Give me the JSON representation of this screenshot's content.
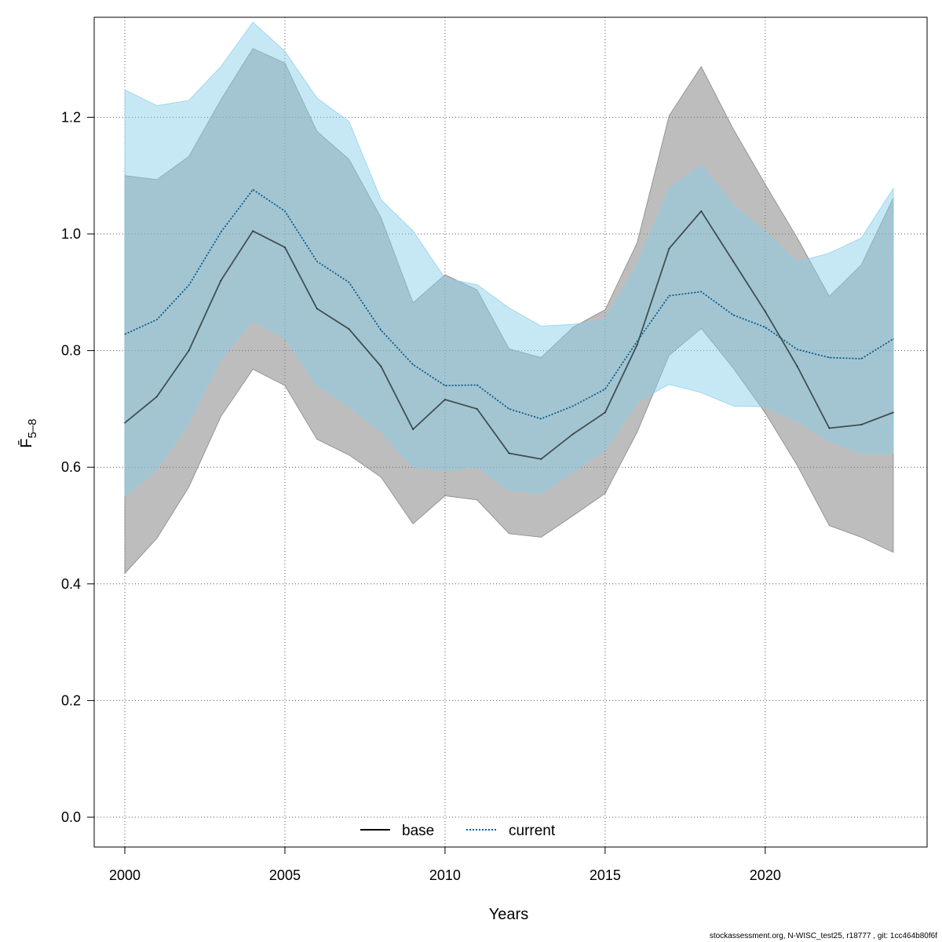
{
  "chart_data": {
    "type": "line",
    "xlabel": "Years",
    "ylabel": "F̄",
    "ylabel_sub": "5–8",
    "xlim": [
      2000,
      2024
    ],
    "ylim": [
      0.0,
      1.35
    ],
    "xticks": [
      "2000",
      "2005",
      "2010",
      "2015",
      "2020"
    ],
    "yticks": [
      "0.0",
      "0.2",
      "0.4",
      "0.6",
      "0.8",
      "1.0",
      "1.2"
    ],
    "grid": true,
    "legend_position": "bottom-center",
    "x": [
      2000,
      2001,
      2002,
      2003,
      2004,
      2005,
      2006,
      2007,
      2008,
      2009,
      2010,
      2011,
      2012,
      2013,
      2014,
      2015,
      2016,
      2017,
      2018,
      2019,
      2020,
      2021,
      2022,
      2023,
      2024
    ],
    "series": [
      {
        "name": "base",
        "line_style": "solid",
        "color": "#000000",
        "band_color": "#808080",
        "values": [
          0.676,
          0.721,
          0.8,
          0.92,
          1.005,
          0.977,
          0.872,
          0.837,
          0.773,
          0.665,
          0.716,
          0.7,
          0.624,
          0.614,
          0.657,
          0.694,
          0.81,
          0.975,
          1.039,
          0.953,
          0.867,
          0.773,
          0.667,
          0.673,
          0.694
        ],
        "lower": [
          0.418,
          0.478,
          0.566,
          0.687,
          0.768,
          0.74,
          0.648,
          0.621,
          0.583,
          0.503,
          0.551,
          0.544,
          0.486,
          0.48,
          0.517,
          0.555,
          0.66,
          0.792,
          0.838,
          0.77,
          0.693,
          0.603,
          0.5,
          0.48,
          0.454
        ],
        "upper": [
          1.1,
          1.093,
          1.133,
          1.23,
          1.318,
          1.293,
          1.176,
          1.128,
          1.028,
          0.882,
          0.93,
          0.904,
          0.803,
          0.788,
          0.84,
          0.87,
          0.985,
          1.203,
          1.287,
          1.18,
          1.085,
          0.993,
          0.893,
          0.947,
          1.062
        ]
      },
      {
        "name": "current",
        "line_style": "dotted",
        "color": "#0b5d8c",
        "band_color": "#87ceeb",
        "values": [
          0.828,
          0.853,
          0.912,
          1.003,
          1.076,
          1.039,
          0.953,
          0.917,
          0.835,
          0.776,
          0.74,
          0.741,
          0.7,
          0.683,
          0.705,
          0.734,
          0.816,
          0.894,
          0.901,
          0.861,
          0.84,
          0.802,
          0.788,
          0.786,
          0.82
        ],
        "lower": [
          0.551,
          0.597,
          0.677,
          0.786,
          0.852,
          0.821,
          0.741,
          0.705,
          0.661,
          0.601,
          0.595,
          0.601,
          0.561,
          0.555,
          0.593,
          0.631,
          0.712,
          0.742,
          0.728,
          0.705,
          0.704,
          0.679,
          0.645,
          0.624,
          0.624
        ],
        "upper": [
          1.247,
          1.22,
          1.229,
          1.287,
          1.363,
          1.313,
          1.233,
          1.193,
          1.059,
          1.005,
          0.924,
          0.913,
          0.873,
          0.842,
          0.845,
          0.853,
          0.947,
          1.077,
          1.118,
          1.049,
          1.003,
          0.952,
          0.967,
          0.993,
          1.078
        ]
      }
    ]
  },
  "footer": "stockassessment.org, N-WISC_test25, r18777 , git: 1cc464b80f6f"
}
